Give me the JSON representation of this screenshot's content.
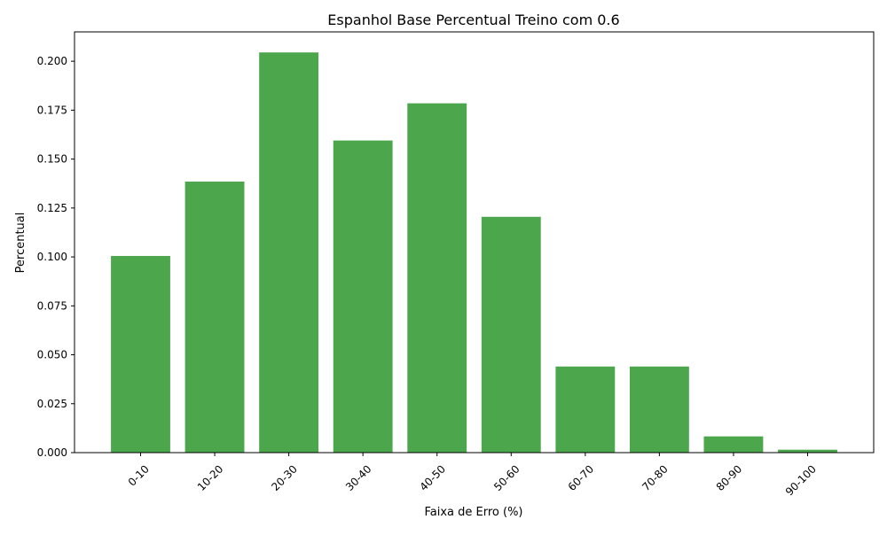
{
  "chart_data": {
    "type": "bar",
    "title": "Espanhol Base Percentual Treino com 0.6",
    "xlabel": "Faixa de Erro (%)",
    "ylabel": "Percentual",
    "categories": [
      "0-10",
      "10-20",
      "20-30",
      "30-40",
      "40-50",
      "50-60",
      "60-70",
      "70-80",
      "80-90",
      "90-100"
    ],
    "values": [
      0.1005,
      0.1385,
      0.2045,
      0.1595,
      0.1785,
      0.1205,
      0.044,
      0.044,
      0.0083,
      0.0015
    ],
    "ylim": [
      0,
      0.215
    ],
    "yticks": [
      "0.000",
      "0.025",
      "0.050",
      "0.075",
      "0.100",
      "0.125",
      "0.150",
      "0.175",
      "0.200"
    ],
    "bar_color": "#4ca64c",
    "grid": false,
    "legend": "none",
    "xtick_rotation": "45deg"
  }
}
